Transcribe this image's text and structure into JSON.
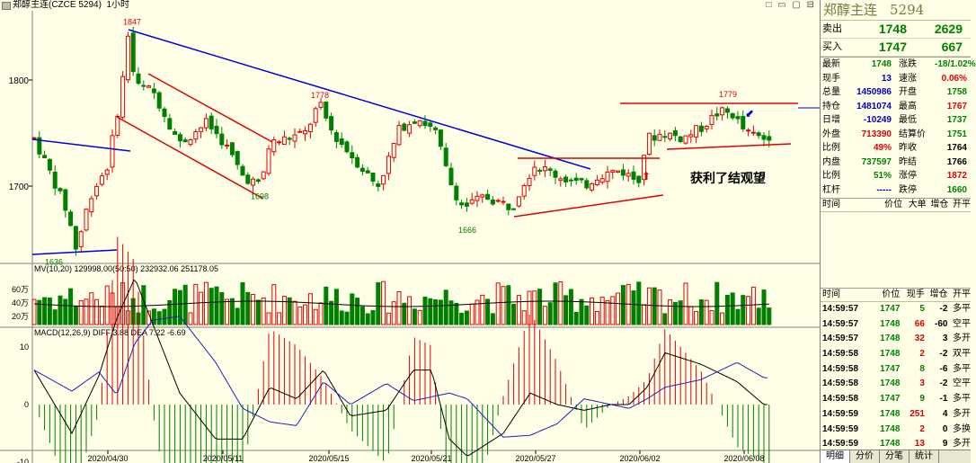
{
  "topbar": {
    "title": "郑醇主连(CZCE 5294)",
    "period": "1小时",
    "controls": "□ ▭ ▢ ⊟"
  },
  "colors": {
    "up": "#e00000",
    "down": "#008000",
    "trend": "#0000e0",
    "ma": "#1a1ae0",
    "dif": "#000000",
    "dea": "#2020c0",
    "bg": "#ffffe8"
  },
  "chart_data": {
    "type": "candlestick",
    "price_axis": {
      "ticks": [
        1700,
        1800
      ],
      "ylim": [
        1630,
        1865
      ]
    },
    "volume_axis": {
      "ticks": [
        "60万",
        "40万",
        "20万"
      ]
    },
    "macd_axis": {
      "ticks": [
        10,
        0,
        -10
      ]
    },
    "dates": [
      "2020/04/30",
      "2020/05/11",
      "2020/05/15",
      "2020/05/21",
      "2020/05/27",
      "2020/06/02",
      "2020/06/08"
    ],
    "price_labels": [
      {
        "text": "1847",
        "value": 1847
      },
      {
        "text": "1636",
        "value": 1636
      },
      {
        "text": "1698",
        "value": 1698
      },
      {
        "text": "1778",
        "value": 1778
      },
      {
        "text": "1666",
        "value": 1666
      },
      {
        "text": "1779",
        "value": 1779
      }
    ],
    "annotation": "获利了结观望",
    "volume_legend": {
      "title": "MV(10,20)",
      "v1": "129998.00(50:50)",
      "v2": "232932.06",
      "v3": "251178.05"
    },
    "macd_legend": {
      "title": "MACD(12,26,9)",
      "dif": "DIFF 3.88",
      "dea": "DEA 7.22",
      "macd": "-6.69"
    },
    "last_price": 1748
  },
  "panel": {
    "name": "郑醇主连",
    "code": "5294",
    "sell_label": "卖出",
    "sell_price": "1748",
    "sell_vol": "2629",
    "buy_label": "买入",
    "buy_price": "1747",
    "buy_vol": "667",
    "stats": [
      {
        "k": "最新",
        "v": "1748",
        "vc": "green",
        "k2": "涨跌",
        "v2": "-18/1.02%",
        "v2c": "green"
      },
      {
        "k": "现手",
        "v": "13",
        "vc": "blue",
        "k2": "速涨",
        "v2": "0.06%",
        "v2c": "red"
      },
      {
        "k": "总量",
        "v": "1450986",
        "vc": "blue",
        "k2": "开盘",
        "v2": "1758",
        "v2c": "green"
      },
      {
        "k": "持仓",
        "v": "1481074",
        "vc": "blue",
        "k2": "最高",
        "v2": "1767",
        "v2c": "red"
      },
      {
        "k": "日增",
        "v": "-10249",
        "vc": "blue",
        "k2": "最低",
        "v2": "1737",
        "v2c": "green"
      },
      {
        "k": "外盘",
        "v": "713390",
        "vc": "red",
        "k2": "结算价",
        "v2": "1751",
        "v2c": "green"
      },
      {
        "k": "比例",
        "v": "49%",
        "vc": "red",
        "k2": "昨收",
        "v2": "1764",
        "v2c": "black"
      },
      {
        "k": "内盘",
        "v": "737597",
        "vc": "green",
        "k2": "昨结",
        "v2": "1766",
        "v2c": "black"
      },
      {
        "k": "比例",
        "v": "51%",
        "vc": "green",
        "k2": "涨停",
        "v2": "1872",
        "v2c": "red"
      },
      {
        "k": "杠杆",
        "v": "-----",
        "vc": "blue",
        "k2": "跌停",
        "v2": "1660",
        "v2c": "green"
      }
    ],
    "big_header": {
      "time": "时间",
      "price": "价位",
      "big": "大单",
      "oi": "增仓",
      "open": "开平"
    },
    "tick_header": {
      "time": "时间",
      "price": "价位",
      "vol": "现手",
      "oi": "增仓",
      "type": "开平"
    },
    "ticks": [
      {
        "time": "14:59:57",
        "price": "1747",
        "pc": "green",
        "vol": "5",
        "vc": "green",
        "oi": "-2",
        "type": "多平"
      },
      {
        "time": "14:59:57",
        "price": "1748",
        "pc": "green",
        "vol": "66",
        "vc": "red",
        "oi": "-60",
        "type": "空平"
      },
      {
        "time": "14:59:57",
        "price": "1748",
        "pc": "green",
        "vol": "32",
        "vc": "red",
        "oi": "3",
        "type": "多开"
      },
      {
        "time": "14:59:58",
        "price": "1748",
        "pc": "green",
        "vol": "2",
        "vc": "red",
        "oi": "-2",
        "type": "双平"
      },
      {
        "time": "14:59:58",
        "price": "1747",
        "pc": "green",
        "vol": "8",
        "vc": "green",
        "oi": "-6",
        "type": "多平"
      },
      {
        "time": "14:59:58",
        "price": "1748",
        "pc": "green",
        "vol": "3",
        "vc": "red",
        "oi": "-2",
        "type": "空平"
      },
      {
        "time": "14:59:58",
        "price": "1747",
        "pc": "green",
        "vol": "9",
        "vc": "green",
        "oi": "-1",
        "type": "多平"
      },
      {
        "time": "14:59:59",
        "price": "1748",
        "pc": "green",
        "vol": "251",
        "vc": "red",
        "oi": "4",
        "type": "多开"
      },
      {
        "time": "14:59:59",
        "price": "1748",
        "pc": "green",
        "vol": "2",
        "vc": "red",
        "oi": "0",
        "type": "多换"
      },
      {
        "time": "14:59:59",
        "price": "1748",
        "pc": "green",
        "vol": "13",
        "vc": "red",
        "oi": "9",
        "type": "多开"
      }
    ],
    "tabs": [
      "明细",
      "分价",
      "分笔",
      "统计"
    ]
  }
}
